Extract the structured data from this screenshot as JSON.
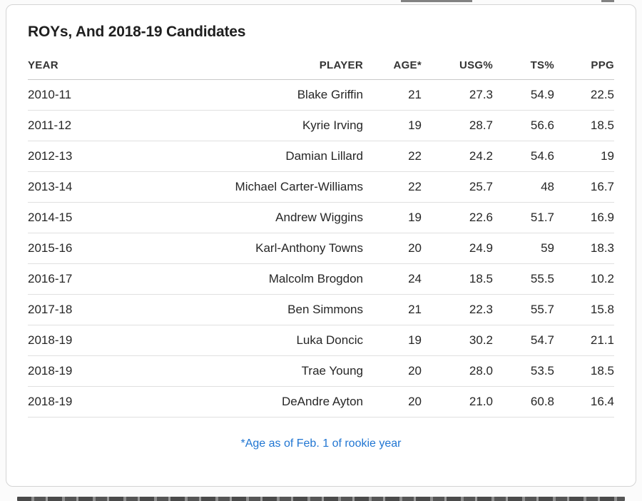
{
  "chart_data": {
    "type": "table",
    "title": "ROYs, And 2018-19 Candidates",
    "columns": [
      "YEAR",
      "PLAYER",
      "AGE*",
      "USG%",
      "TS%",
      "PPG"
    ],
    "rows": [
      {
        "year": "2010-11",
        "player": "Blake Griffin",
        "age": "21",
        "usg": "27.3",
        "ts": "54.9",
        "ppg": "22.5"
      },
      {
        "year": "2011-12",
        "player": "Kyrie Irving",
        "age": "19",
        "usg": "28.7",
        "ts": "56.6",
        "ppg": "18.5"
      },
      {
        "year": "2012-13",
        "player": "Damian Lillard",
        "age": "22",
        "usg": "24.2",
        "ts": "54.6",
        "ppg": "19"
      },
      {
        "year": "2013-14",
        "player": "Michael Carter-Williams",
        "age": "22",
        "usg": "25.7",
        "ts": "48",
        "ppg": "16.7"
      },
      {
        "year": "2014-15",
        "player": "Andrew Wiggins",
        "age": "19",
        "usg": "22.6",
        "ts": "51.7",
        "ppg": "16.9"
      },
      {
        "year": "2015-16",
        "player": "Karl-Anthony Towns",
        "age": "20",
        "usg": "24.9",
        "ts": "59",
        "ppg": "18.3"
      },
      {
        "year": "2016-17",
        "player": "Malcolm Brogdon",
        "age": "24",
        "usg": "18.5",
        "ts": "55.5",
        "ppg": "10.2"
      },
      {
        "year": "2017-18",
        "player": "Ben Simmons",
        "age": "21",
        "usg": "22.3",
        "ts": "55.7",
        "ppg": "15.8"
      },
      {
        "year": "2018-19",
        "player": "Luka Doncic",
        "age": "19",
        "usg": "30.2",
        "ts": "54.7",
        "ppg": "21.1"
      },
      {
        "year": "2018-19",
        "player": "Trae Young",
        "age": "20",
        "usg": "28.0",
        "ts": "53.5",
        "ppg": "18.5"
      },
      {
        "year": "2018-19",
        "player": "DeAndre Ayton",
        "age": "20",
        "usg": "21.0",
        "ts": "60.8",
        "ppg": "16.4"
      }
    ],
    "footnote": "*Age as of Feb. 1 of rookie year",
    "layout": {
      "header_align": [
        "left",
        "right",
        "right",
        "right",
        "right",
        "right"
      ],
      "grid": "horizontal-rules-only"
    }
  },
  "colors": {
    "accent_blue": "#2176d2",
    "text": "#262626",
    "rule": "#e0e0e0",
    "card_border": "#d4d4d4",
    "card_bg": "#ffffff"
  }
}
